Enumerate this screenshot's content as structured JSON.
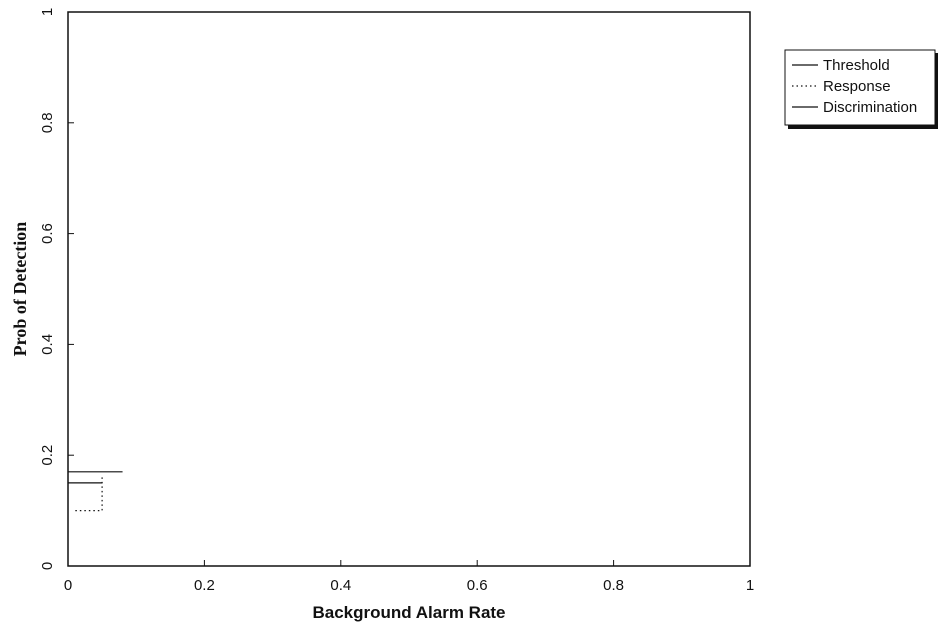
{
  "chart_data": {
    "type": "line",
    "title": "",
    "xlabel": "Background Alarm Rate",
    "ylabel": "Prob of Detection",
    "xlim": [
      0,
      1
    ],
    "ylim": [
      0,
      1
    ],
    "x_ticks": [
      "0",
      "0.2",
      "0.4",
      "0.6",
      "0.8",
      "1"
    ],
    "y_ticks": [
      "0",
      "0.2",
      "0.4",
      "0.6",
      "0.8",
      "1"
    ],
    "grid": false,
    "legend_position": "outside-right",
    "series": [
      {
        "name": "Threshold",
        "style": "solid",
        "points": [
          [
            0,
            0.17
          ],
          [
            0.08,
            0.17
          ]
        ]
      },
      {
        "name": "Response",
        "style": "dotted",
        "points": [
          [
            0.05,
            0.16
          ],
          [
            0.05,
            0.1
          ],
          [
            0.01,
            0.1
          ]
        ]
      },
      {
        "name": "Discrimination",
        "style": "solid",
        "points": [
          [
            0,
            0.15
          ],
          [
            0.05,
            0.15
          ]
        ]
      }
    ],
    "colors": {
      "axis": "#111111",
      "series": "#111111",
      "background": "#ffffff"
    }
  }
}
